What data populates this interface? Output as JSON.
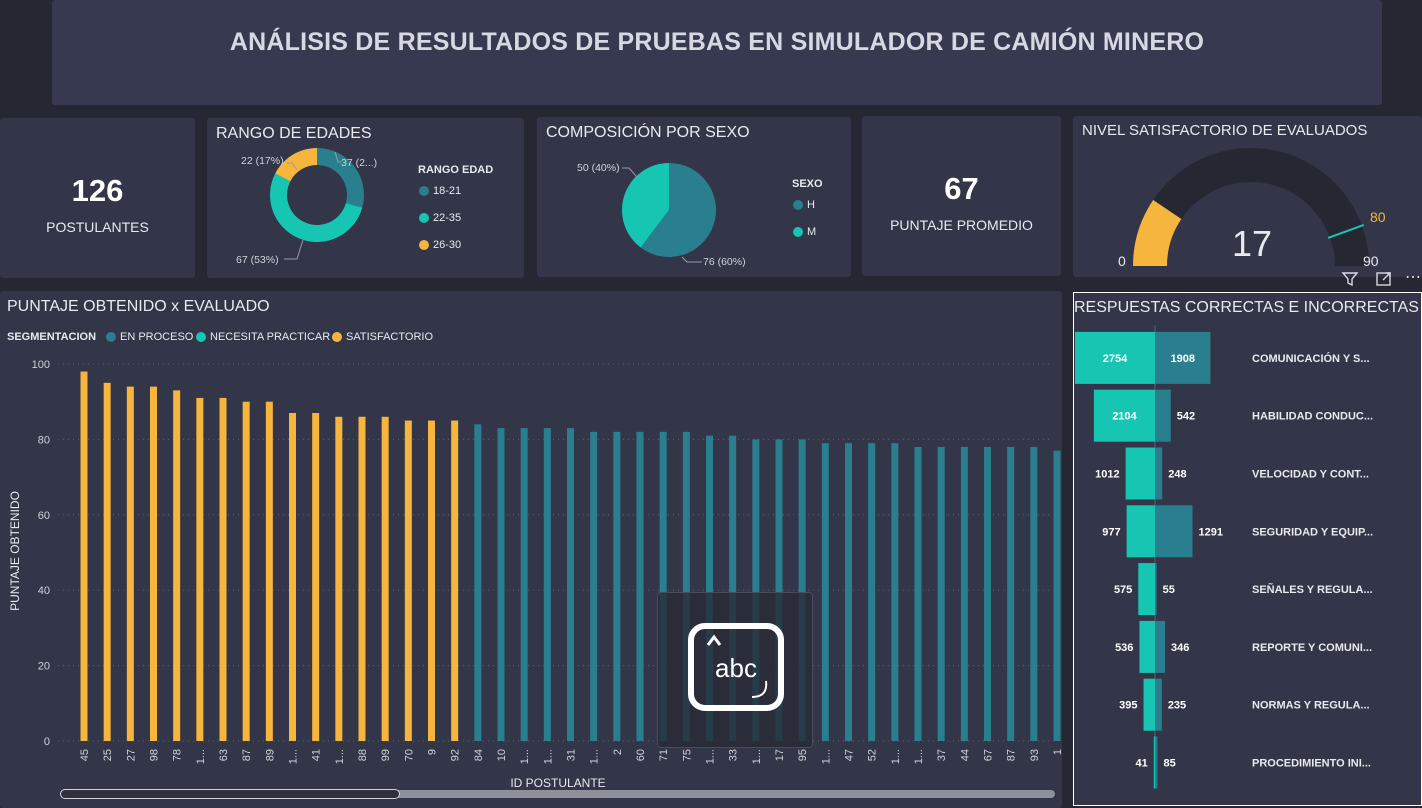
{
  "header": {
    "title": "ANÁLISIS DE RESULTADOS DE PRUEBAS EN SIMULADOR DE CAMIÓN MINERO"
  },
  "kpi_postulantes": {
    "value": "126",
    "label": "POSTULANTES"
  },
  "kpi_puntaje": {
    "value": "67",
    "label": "PUNTAJE PROMEDIO"
  },
  "colors": {
    "teal": "#2a7f8f",
    "cyan": "#16c6b3",
    "yellow": "#f6b63d",
    "gauge_bg": "#252733"
  },
  "edades": {
    "title": "RANGO DE EDADES",
    "legend_title": "RANGO EDAD",
    "labels": {
      "a": "37 (2...)",
      "b": "22 (17%)",
      "c": "67 (53%)"
    }
  },
  "sexo": {
    "title": "COMPOSICIÓN POR SEXO",
    "legend_title": "SEXO",
    "labels": {
      "m": "50 (40%)",
      "h": "76 (60%)"
    }
  },
  "gauge": {
    "title": "NIVEL SATISFACTORIO DE EVALUADOS",
    "min_label": "0",
    "target_label": "80",
    "max_label": "90"
  },
  "bar_panel": {
    "title": "PUNTAJE OBTENIDO x EVALUADO",
    "legend_title": "SEGMENTACION",
    "overlay_icon": "abc-textbox-icon"
  },
  "resp_panel": {
    "title": "RESPUESTAS CORRECTAS E INCORRECTAS"
  },
  "toolbar": {
    "filter_icon": "filter-icon",
    "focus_icon": "focus-mode-icon",
    "more_icon": "more-options-icon",
    "more_label": "⋯"
  },
  "chart_data": [
    {
      "type": "pie",
      "id": "edades",
      "title": "RANGO DE EDADES",
      "donut": true,
      "legend_placement": "right",
      "slices": [
        {
          "name": "18-21",
          "value": 37,
          "label": "37 (2...)",
          "color": "#2a7f8f"
        },
        {
          "name": "22-35",
          "value": 67,
          "label": "67 (53%)",
          "color": "#16c6b3"
        },
        {
          "name": "26-30",
          "value": 22,
          "label": "22 (17%)",
          "color": "#f6b63d"
        }
      ]
    },
    {
      "type": "pie",
      "id": "sexo",
      "title": "COMPOSICIÓN POR SEXO",
      "legend_placement": "right",
      "slices": [
        {
          "name": "H",
          "value": 76,
          "label": "76 (60%)",
          "color": "#2a7f8f"
        },
        {
          "name": "M",
          "value": 50,
          "label": "50 (40%)",
          "color": "#16c6b3"
        }
      ]
    },
    {
      "type": "gauge",
      "id": "gauge",
      "title": "NIVEL SATISFACTORIO DE EVALUADOS",
      "value": 17,
      "value_label": "17",
      "min": 0,
      "max": 90,
      "target": 80
    },
    {
      "type": "bar",
      "id": "puntaje",
      "title": "PUNTAJE OBTENIDO x EVALUADO",
      "xlabel": "ID POSTULANTE",
      "ylabel": "PUNTAJE OBTENIDO",
      "ylim": [
        0,
        100
      ],
      "yticks": [
        "0",
        "20",
        "40",
        "60",
        "80",
        "100"
      ],
      "grid": true,
      "legend_placement": "top-left",
      "segments": [
        {
          "name": "EN PROCESO",
          "color": "#2a7f8f"
        },
        {
          "name": "NECESITA PRACTICAR",
          "color": "#16c6b3"
        },
        {
          "name": "SATISFACTORIO",
          "color": "#f6b63d"
        }
      ],
      "categories": [
        "45",
        "25",
        "27",
        "98",
        "78",
        "1...",
        "63",
        "87",
        "89",
        "1...",
        "41",
        "1...",
        "88",
        "99",
        "70",
        "9",
        "92",
        "84",
        "10",
        "1...",
        "1...",
        "31",
        "1...",
        "2",
        "60",
        "71",
        "75",
        "1...",
        "33",
        "1...",
        "17",
        "95",
        "1...",
        "47",
        "52",
        "1...",
        "1...",
        "37",
        "44",
        "67",
        "87",
        "93",
        "1"
      ],
      "values": [
        98,
        95,
        94,
        94,
        93,
        91,
        91,
        90,
        90,
        87,
        87,
        86,
        86,
        86,
        85,
        85,
        85,
        84,
        83,
        83,
        83,
        83,
        82,
        82,
        82,
        82,
        82,
        81,
        81,
        80,
        80,
        80,
        79,
        79,
        79,
        79,
        78,
        78,
        78,
        78,
        78,
        78,
        77
      ],
      "segment": [
        "SATISFACTORIO",
        "SATISFACTORIO",
        "SATISFACTORIO",
        "SATISFACTORIO",
        "SATISFACTORIO",
        "SATISFACTORIO",
        "SATISFACTORIO",
        "SATISFACTORIO",
        "SATISFACTORIO",
        "SATISFACTORIO",
        "SATISFACTORIO",
        "SATISFACTORIO",
        "SATISFACTORIO",
        "SATISFACTORIO",
        "SATISFACTORIO",
        "SATISFACTORIO",
        "SATISFACTORIO",
        "EN PROCESO",
        "EN PROCESO",
        "EN PROCESO",
        "EN PROCESO",
        "EN PROCESO",
        "EN PROCESO",
        "EN PROCESO",
        "EN PROCESO",
        "EN PROCESO",
        "EN PROCESO",
        "EN PROCESO",
        "EN PROCESO",
        "EN PROCESO",
        "EN PROCESO",
        "EN PROCESO",
        "EN PROCESO",
        "EN PROCESO",
        "EN PROCESO",
        "EN PROCESO",
        "EN PROCESO",
        "EN PROCESO",
        "EN PROCESO",
        "EN PROCESO",
        "EN PROCESO",
        "EN PROCESO",
        "EN PROCESO"
      ]
    },
    {
      "type": "bar",
      "id": "respuestas",
      "orientation": "horizontal-diverging",
      "title": "RESPUESTAS CORRECTAS E INCORRECTAS",
      "categories": [
        "COMUNICACIÓN Y S...",
        "HABILIDAD CONDUC...",
        "VELOCIDAD Y CONT...",
        "SEGURIDAD Y EQUIP...",
        "SEÑALES Y REGULA...",
        "REPORTE Y COMUNI...",
        "NORMAS Y REGULA...",
        "PROCEDIMIENTO INI..."
      ],
      "series": [
        {
          "name": "Correctas",
          "color": "#16c6b3",
          "values": [
            2754,
            2104,
            1012,
            977,
            575,
            536,
            395,
            41
          ]
        },
        {
          "name": "Incorrectas",
          "color": "#2a7f8f",
          "values": [
            1908,
            542,
            248,
            1291,
            55,
            346,
            235,
            85
          ]
        }
      ]
    }
  ]
}
